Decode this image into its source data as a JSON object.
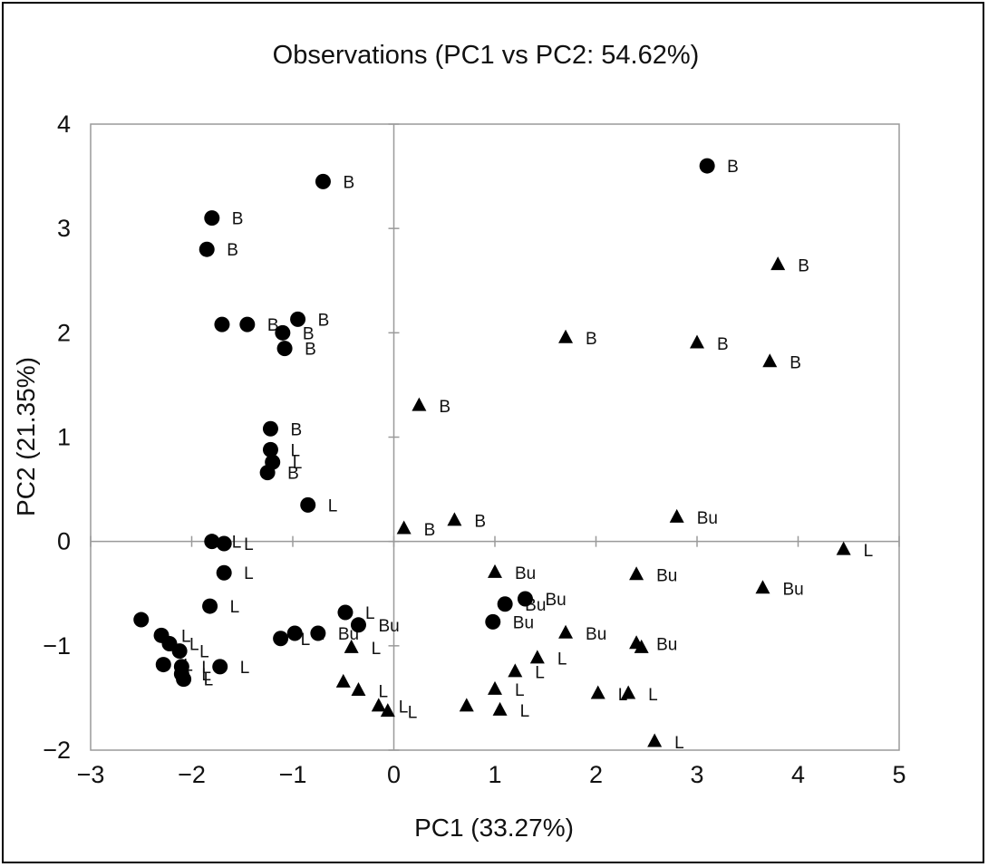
{
  "chart_data": {
    "type": "scatter",
    "title": "Observations (PC1 vs PC2: 54.62%)",
    "xlabel": "PC1 (33.27%)",
    "ylabel": "PC2 (21.35%)",
    "xlim": [
      -3,
      5
    ],
    "ylim": [
      -2,
      4
    ],
    "xticks": [
      "-3",
      "-2",
      "-1",
      "0",
      "1",
      "2",
      "3",
      "4",
      "5"
    ],
    "yticks": [
      "-2",
      "-1",
      "0",
      "1",
      "2",
      "3",
      "4"
    ],
    "grid": false,
    "legend": "none",
    "marker_color": "#000000",
    "series": [
      {
        "marker": "circle",
        "points": [
          {
            "x": -0.7,
            "y": 3.45,
            "label": "B"
          },
          {
            "x": -1.8,
            "y": 3.1,
            "label": "B"
          },
          {
            "x": -1.85,
            "y": 2.8,
            "label": "B"
          },
          {
            "x": -1.7,
            "y": 2.08,
            "label": "B"
          },
          {
            "x": -1.45,
            "y": 2.08,
            "label": "B"
          },
          {
            "x": -0.95,
            "y": 2.13,
            "label": "B"
          },
          {
            "x": -1.1,
            "y": 2.0,
            "label": "B"
          },
          {
            "x": -1.08,
            "y": 1.85,
            "label": "B"
          },
          {
            "x": -1.22,
            "y": 1.08,
            "label": "B"
          },
          {
            "x": -1.22,
            "y": 0.88,
            "label": "L"
          },
          {
            "x": -1.2,
            "y": 0.76,
            "label": "L"
          },
          {
            "x": -1.25,
            "y": 0.66,
            "label": "B"
          },
          {
            "x": -0.85,
            "y": 0.35,
            "label": "L"
          },
          {
            "x": 3.1,
            "y": 3.6,
            "label": "B"
          },
          {
            "x": -1.8,
            "y": 0.0,
            "label": "L"
          },
          {
            "x": -1.68,
            "y": -0.02,
            "label": "L"
          },
          {
            "x": -1.68,
            "y": -0.3,
            "label": "L"
          },
          {
            "x": -1.82,
            "y": -0.62,
            "label": "L"
          },
          {
            "x": -2.5,
            "y": -0.75,
            "label": ""
          },
          {
            "x": -2.3,
            "y": -0.9,
            "label": "L"
          },
          {
            "x": -2.22,
            "y": -0.98,
            "label": "L"
          },
          {
            "x": -2.12,
            "y": -1.05,
            "label": "L"
          },
          {
            "x": -2.28,
            "y": -1.18,
            "label": "L"
          },
          {
            "x": -2.1,
            "y": -1.2,
            "label": "L"
          },
          {
            "x": -2.1,
            "y": -1.27,
            "label": "L"
          },
          {
            "x": -2.08,
            "y": -1.32,
            "label": "L"
          },
          {
            "x": -1.72,
            "y": -1.2,
            "label": "L"
          },
          {
            "x": -1.12,
            "y": -0.93,
            "label": "L"
          },
          {
            "x": -0.98,
            "y": -0.88,
            "label": "L"
          },
          {
            "x": -0.75,
            "y": -0.88,
            "label": "Bu"
          },
          {
            "x": -0.48,
            "y": -0.68,
            "label": "L"
          },
          {
            "x": -0.35,
            "y": -0.8,
            "label": "Bu"
          },
          {
            "x": 1.1,
            "y": -0.6,
            "label": "Bu"
          },
          {
            "x": 1.3,
            "y": -0.55,
            "label": "Bu"
          },
          {
            "x": 0.98,
            "y": -0.77,
            "label": "Bu"
          }
        ]
      },
      {
        "marker": "triangle",
        "points": [
          {
            "x": 3.8,
            "y": 2.65,
            "label": "B"
          },
          {
            "x": 1.7,
            "y": 1.95,
            "label": "B"
          },
          {
            "x": 3.0,
            "y": 1.9,
            "label": "B"
          },
          {
            "x": 3.72,
            "y": 1.72,
            "label": "B"
          },
          {
            "x": 0.25,
            "y": 1.3,
            "label": "B"
          },
          {
            "x": 0.6,
            "y": 0.2,
            "label": "B"
          },
          {
            "x": 0.1,
            "y": 0.12,
            "label": "B"
          },
          {
            "x": 2.8,
            "y": 0.23,
            "label": "Bu"
          },
          {
            "x": 4.45,
            "y": -0.08,
            "label": "L"
          },
          {
            "x": 1.0,
            "y": -0.3,
            "label": "Bu"
          },
          {
            "x": 2.4,
            "y": -0.32,
            "label": "Bu"
          },
          {
            "x": 3.65,
            "y": -0.45,
            "label": "Bu"
          },
          {
            "x": 1.7,
            "y": -0.88,
            "label": "Bu"
          },
          {
            "x": 2.4,
            "y": -0.98,
            "label": "Bu"
          },
          {
            "x": 2.45,
            "y": -1.02,
            "label": ""
          },
          {
            "x": -0.42,
            "y": -1.02,
            "label": "L"
          },
          {
            "x": 1.42,
            "y": -1.12,
            "label": "L"
          },
          {
            "x": 1.2,
            "y": -1.25,
            "label": "L"
          },
          {
            "x": -0.5,
            "y": -1.35,
            "label": ""
          },
          {
            "x": -0.35,
            "y": -1.43,
            "label": "L"
          },
          {
            "x": 1.0,
            "y": -1.42,
            "label": "L"
          },
          {
            "x": 2.02,
            "y": -1.46,
            "label": "L"
          },
          {
            "x": 2.32,
            "y": -1.46,
            "label": "L"
          },
          {
            "x": -0.15,
            "y": -1.58,
            "label": "L"
          },
          {
            "x": -0.06,
            "y": -1.63,
            "label": "L"
          },
          {
            "x": 0.72,
            "y": -1.58,
            "label": ""
          },
          {
            "x": 1.05,
            "y": -1.62,
            "label": "L"
          },
          {
            "x": 2.58,
            "y": -1.92,
            "label": "L"
          }
        ]
      }
    ]
  }
}
